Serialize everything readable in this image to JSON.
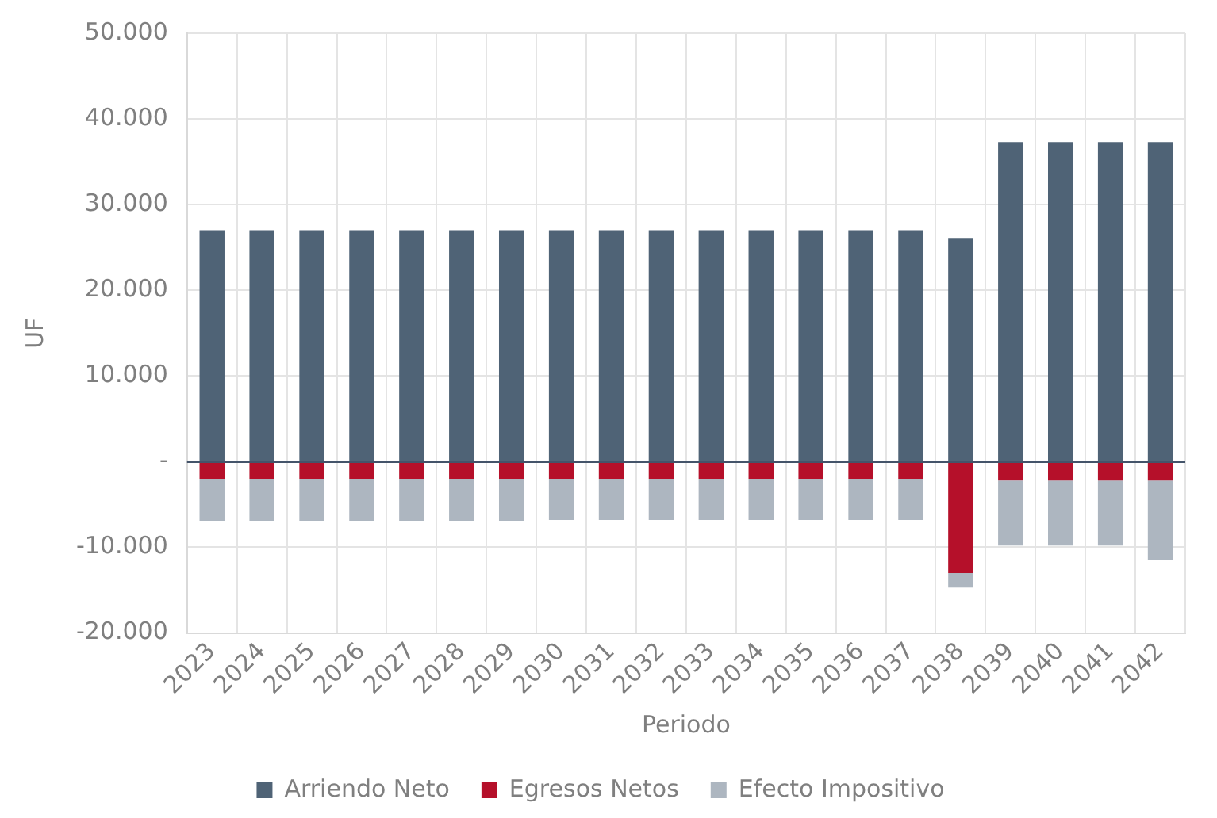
{
  "chart_data": {
    "type": "bar",
    "stacked": true,
    "xlabel": "Periodo",
    "ylabel": "UF",
    "categories": [
      "2023",
      "2024",
      "2025",
      "2026",
      "2027",
      "2028",
      "2029",
      "2030",
      "2031",
      "2032",
      "2033",
      "2034",
      "2035",
      "2036",
      "2037",
      "2038",
      "2039",
      "2040",
      "2041",
      "2042"
    ],
    "series": [
      {
        "name": "Arriendo Neto",
        "color": "#4f6376",
        "values": [
          27000,
          27000,
          27000,
          27000,
          27000,
          27000,
          27000,
          27000,
          27000,
          27000,
          27000,
          27000,
          27000,
          27000,
          27000,
          26100,
          37300,
          37300,
          37300,
          37300
        ]
      },
      {
        "name": "Egresos Netos",
        "color": "#b5102a",
        "values": [
          -2000,
          -2000,
          -2000,
          -2000,
          -2000,
          -2000,
          -2000,
          -2000,
          -2000,
          -2000,
          -2000,
          -2000,
          -2000,
          -2000,
          -2000,
          -13000,
          -2200,
          -2200,
          -2200,
          -2200
        ]
      },
      {
        "name": "Efecto Impositivo",
        "color": "#adb6c0",
        "values": [
          -4900,
          -4900,
          -4900,
          -4900,
          -4900,
          -4900,
          -4900,
          -4800,
          -4800,
          -4800,
          -4800,
          -4800,
          -4800,
          -4800,
          -4800,
          -1700,
          -7600,
          -7600,
          -7600,
          -9300
        ]
      }
    ],
    "ylim": [
      -20000,
      50000
    ],
    "yticks": [
      {
        "value": -20000,
        "label": "-20.000"
      },
      {
        "value": -10000,
        "label": "-10.000"
      },
      {
        "value": 0,
        "label": "-"
      },
      {
        "value": 10000,
        "label": "10.000"
      },
      {
        "value": 20000,
        "label": "20.000"
      },
      {
        "value": 30000,
        "label": "30.000"
      },
      {
        "value": 40000,
        "label": "40.000"
      },
      {
        "value": 50000,
        "label": "50.000"
      }
    ],
    "grid": true,
    "legend": "bottom"
  }
}
